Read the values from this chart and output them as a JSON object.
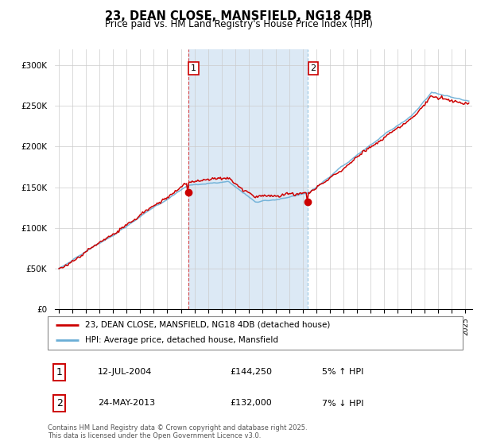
{
  "title": "23, DEAN CLOSE, MANSFIELD, NG18 4DB",
  "subtitle": "Price paid vs. HM Land Registry's House Price Index (HPI)",
  "legend_line1": "23, DEAN CLOSE, MANSFIELD, NG18 4DB (detached house)",
  "legend_line2": "HPI: Average price, detached house, Mansfield",
  "sale1_date": "12-JUL-2004",
  "sale1_price": "£144,250",
  "sale1_hpi": "5% ↑ HPI",
  "sale2_date": "24-MAY-2013",
  "sale2_price": "£132,000",
  "sale2_hpi": "7% ↓ HPI",
  "footer": "Contains HM Land Registry data © Crown copyright and database right 2025.\nThis data is licensed under the Open Government Licence v3.0.",
  "ylabel_ticks": [
    "£0",
    "£50K",
    "£100K",
    "£150K",
    "£200K",
    "£250K",
    "£300K"
  ],
  "ylabel_values": [
    0,
    50000,
    100000,
    150000,
    200000,
    250000,
    300000
  ],
  "ylim": [
    0,
    320000
  ],
  "shade_color": "#dce9f5",
  "grid_color": "#cccccc",
  "hpi_line_color": "#6aaed6",
  "price_line_color": "#cc0000",
  "sale1_x": 2004.54,
  "sale2_x": 2013.37,
  "marker1_price": 144250,
  "marker2_price": 132000,
  "xlim_min": 1994.7,
  "xlim_max": 2025.5
}
